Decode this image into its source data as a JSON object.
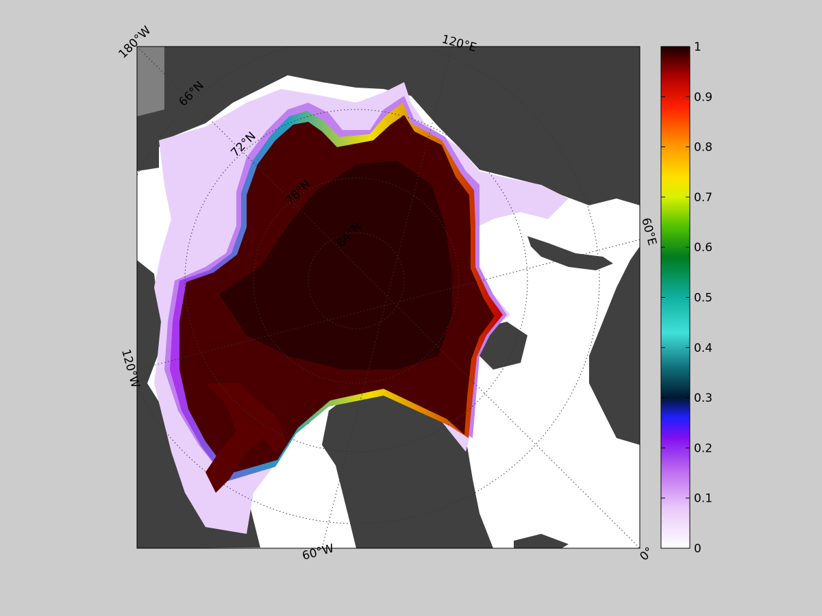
{
  "figure": {
    "background": "#cccccc",
    "map": {
      "ocean_color": "#ffffff",
      "land_color": "#404040",
      "land_border_color": "#555555",
      "graticule_color": "#333333",
      "longitude_labels": [
        {
          "text": "180°W",
          "anchor": "top-left corner"
        },
        {
          "text": "120°E",
          "anchor": "top edge"
        },
        {
          "text": "60°E",
          "anchor": "right edge"
        },
        {
          "text": "0°",
          "anchor": "bottom-right corner"
        },
        {
          "text": "60°W",
          "anchor": "bottom edge"
        },
        {
          "text": "120°W",
          "anchor": "left edge"
        }
      ],
      "latitude_labels": [
        "66°N",
        "72°N",
        "78°N",
        "84°N"
      ]
    },
    "colorbar": {
      "ticks": [
        "0",
        "0.1",
        "0.2",
        "0.3",
        "0.4",
        "0.5",
        "0.6",
        "0.7",
        "0.8",
        "0.9",
        "1"
      ],
      "range": [
        0,
        1
      ],
      "colormap": [
        "#ffffff",
        "#e0a8f8",
        "#a020f0",
        "#2020ff",
        "#001a2a",
        "#20c0b0",
        "#40e8e0",
        "#008800",
        "#80e000",
        "#ffff00",
        "#ffa000",
        "#ff2000",
        "#a00000",
        "#200000"
      ]
    }
  }
}
